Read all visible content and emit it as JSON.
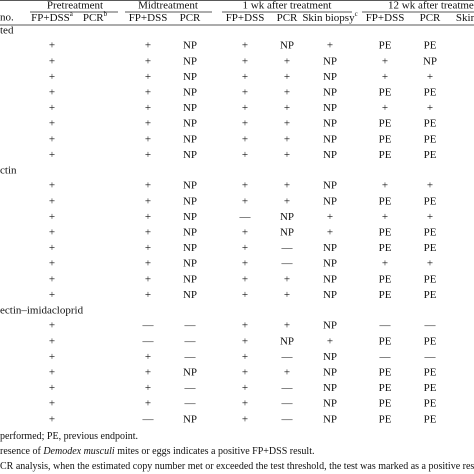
{
  "table": {
    "row_label": "no.",
    "groups": [
      "Pretreatment",
      "Midtreatment",
      "1 wk after treatment",
      "12 wk after treatme"
    ],
    "subheaders": [
      {
        "text": "FP+DSS",
        "note": "a"
      },
      {
        "text": "PCR",
        "note": "b"
      },
      {
        "text": "FP+DSS"
      },
      {
        "text": "PCR"
      },
      {
        "text": "FP+DSS"
      },
      {
        "text": "PCR"
      },
      {
        "text": "Skin biopsy",
        "note": "c"
      },
      {
        "text": "FP+DSS"
      },
      {
        "text": "PCR"
      },
      {
        "text": "Skin"
      }
    ],
    "sections": [
      {
        "name": "ted",
        "rows": [
          [
            "+",
            null,
            "+",
            "NP",
            "+",
            "NP",
            "+",
            "PE",
            "PE"
          ],
          [
            "+",
            null,
            "+",
            "NP",
            "+",
            "+",
            "NP",
            "+",
            "NP"
          ],
          [
            "+",
            null,
            "+",
            "NP",
            "+",
            "+",
            "NP",
            "+",
            "+"
          ],
          [
            "+",
            null,
            "+",
            "NP",
            "+",
            "+",
            "NP",
            "PE",
            "PE"
          ],
          [
            "+",
            null,
            "+",
            "NP",
            "+",
            "+",
            "NP",
            "+",
            "+"
          ],
          [
            "+",
            null,
            "+",
            "NP",
            "+",
            "+",
            "NP",
            "PE",
            "PE"
          ],
          [
            "+",
            null,
            "+",
            "NP",
            "+",
            "+",
            "NP",
            "PE",
            "PE"
          ],
          [
            "+",
            null,
            "+",
            "NP",
            "+",
            "+",
            "NP",
            "PE",
            "PE"
          ]
        ]
      },
      {
        "name": "ctin",
        "rows": [
          [
            "+",
            null,
            "+",
            "NP",
            "+",
            "+",
            "NP",
            "+",
            "+"
          ],
          [
            "+",
            null,
            "+",
            "NP",
            "+",
            "+",
            "NP",
            "PE",
            "PE"
          ],
          [
            "+",
            null,
            "+",
            "NP",
            "—",
            "NP",
            "+",
            "+",
            "+"
          ],
          [
            "+",
            null,
            "+",
            "NP",
            "+",
            "NP",
            "+",
            "PE",
            "PE"
          ],
          [
            "+",
            null,
            "+",
            "NP",
            "+",
            "—",
            "NP",
            "PE",
            "PE"
          ],
          [
            "+",
            null,
            "+",
            "NP",
            "+",
            "—",
            "NP",
            "+",
            "+"
          ],
          [
            "+",
            null,
            "+",
            "NP",
            "+",
            "+",
            "NP",
            "PE",
            "PE"
          ],
          [
            "+",
            null,
            "+",
            "NP",
            "+",
            "+",
            "NP",
            "PE",
            "PE"
          ]
        ]
      },
      {
        "name": "ectin–imidacloprid",
        "rows": [
          [
            "+",
            null,
            "—",
            "—",
            "+",
            "+",
            "NP",
            "—",
            "—"
          ],
          [
            "+",
            null,
            "—",
            "—",
            "+",
            "NP",
            "+",
            "PE",
            "PE"
          ],
          [
            "+",
            null,
            "+",
            "—",
            "+",
            "—",
            "NP",
            "—",
            "—"
          ],
          [
            "+",
            null,
            "+",
            "NP",
            "+",
            "+",
            "NP",
            "PE",
            "PE"
          ],
          [
            "+",
            null,
            "+",
            "—",
            "+",
            "—",
            "NP",
            "PE",
            "PE"
          ],
          [
            "+",
            null,
            "+",
            "—",
            "+",
            "—",
            "NP",
            "PE",
            "PE"
          ],
          [
            "+",
            null,
            "—",
            "NP",
            "+",
            "—",
            "NP",
            "PE",
            "PE"
          ]
        ]
      }
    ]
  },
  "footnotes": [
    [
      "performed; PE, previous endpoint."
    ],
    [
      "resence of ",
      "Demodex musculi",
      " mites or eggs indicates a positive FP+DSS result."
    ],
    [
      "CR analysis, when the estimated copy number met or exceeded the test threshold, the test was marked as a positive result"
    ]
  ]
}
